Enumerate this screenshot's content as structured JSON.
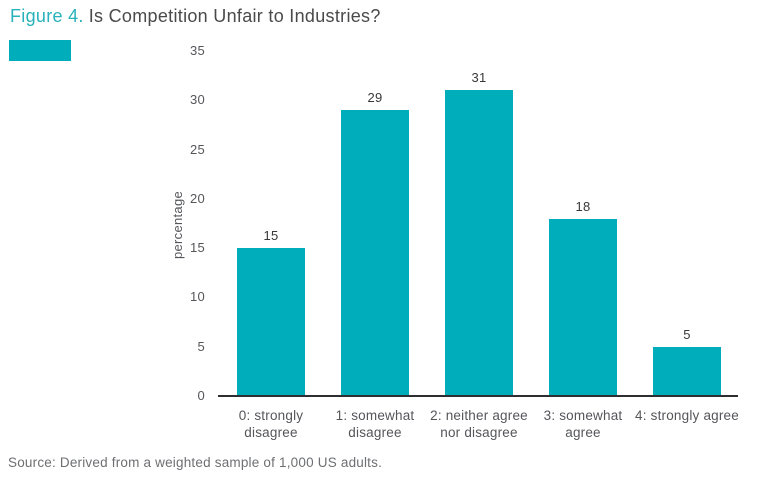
{
  "header": {
    "figure_label": "Figure 4.",
    "title": "Is Competition Unfair to Industries?"
  },
  "source": "Source: Derived from a weighted sample of 1,000 US adults.",
  "colors": {
    "bar": "#00aebb",
    "title_accent": "#27b2bc",
    "title_text": "#4a4a4c",
    "axis_line": "#2e2e30",
    "tick_text": "#55565a",
    "value_label_text": "#37383a",
    "source_text": "#6e6f72",
    "legend_swatch": "#00aebb"
  },
  "chart_data": {
    "type": "bar",
    "title": "Figure 4. Is Competition Unfair to Industries?",
    "categories": [
      "0: strongly disagree",
      "1: somewhat disagree",
      "2: neither agree nor disagree",
      "3: somewhat agree",
      "4: strongly agree"
    ],
    "categories_lines": [
      [
        "0: strongly",
        "disagree"
      ],
      [
        "1: somewhat",
        "disagree"
      ],
      [
        "2: neither agree",
        "nor disagree"
      ],
      [
        "3: somewhat",
        "agree"
      ],
      [
        "4: strongly agree"
      ]
    ],
    "values": [
      15,
      29,
      31,
      18,
      5
    ],
    "value_labels": [
      "15",
      "29",
      "31",
      "18",
      "5"
    ],
    "xlabel": "",
    "ylabel": "percentage",
    "ylim": [
      0,
      35
    ],
    "yticks": [
      0,
      5,
      10,
      15,
      20,
      25,
      30,
      35
    ],
    "grid": false,
    "legend_position": "none",
    "bar_color": "#00aebb"
  }
}
